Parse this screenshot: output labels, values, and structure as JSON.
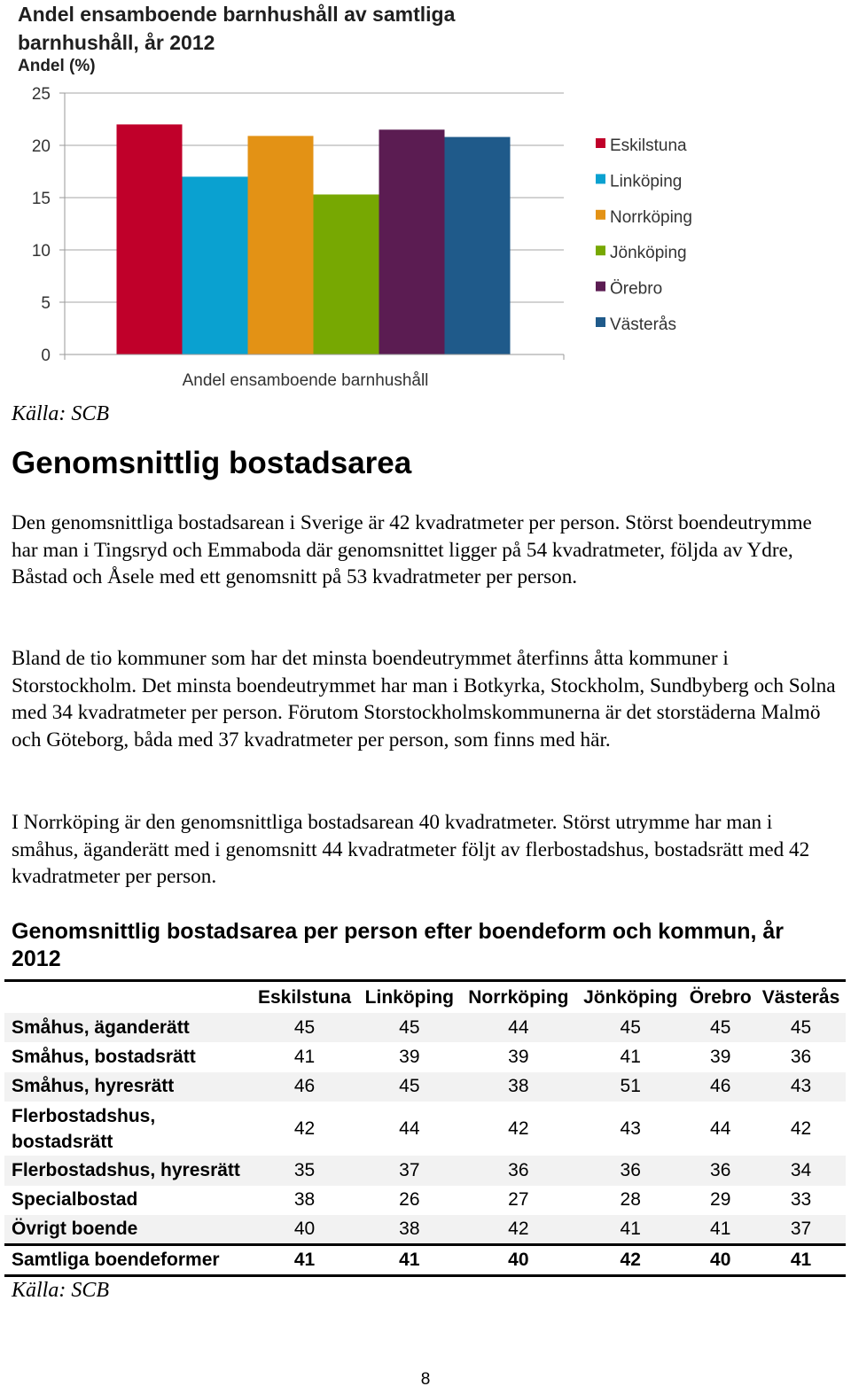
{
  "chart": {
    "title": "Andel ensamboende barnhushåll av samtliga barnhushåll, år 2012",
    "ylabel": "Andel (%)"
  },
  "chart_data": {
    "type": "bar",
    "title": "Andel ensamboende barnhushåll av samtliga barnhushåll, år 2012",
    "ylabel": "Andel (%)",
    "xlabel": "",
    "categories": [
      "Andel ensamboende barnhushåll"
    ],
    "yticks": [
      "0",
      "5",
      "10",
      "15",
      "20",
      "25"
    ],
    "ylim": [
      0,
      25
    ],
    "grid": true,
    "legend_position": "right",
    "series": [
      {
        "name": "Eskilstuna",
        "values": [
          22.0
        ],
        "color": "#c0002a"
      },
      {
        "name": "Linköping",
        "values": [
          17.0
        ],
        "color": "#0aa1d0"
      },
      {
        "name": "Norrköping",
        "values": [
          20.9
        ],
        "color": "#e39215"
      },
      {
        "name": "Jönköping",
        "values": [
          15.3
        ],
        "color": "#77a802"
      },
      {
        "name": "Örebro",
        "values": [
          21.5
        ],
        "color": "#5b1c52"
      },
      {
        "name": "Västerås",
        "values": [
          20.8
        ],
        "color": "#1f5a8a"
      }
    ]
  },
  "chart_source": "Källa: SCB",
  "section": {
    "heading": "Genomsnittlig bostadsarea",
    "paragraphs": [
      "Den genomsnittliga bostadsarean i Sverige är 42 kvadratmeter per person. Störst boendeutrymme har man i Tingsryd och Emmaboda där genomsnittet ligger på 54 kvadratmeter, följda av Ydre, Båstad och Åsele med ett genomsnitt på 53 kvadratmeter per person.",
      "Bland de tio kommuner som har det minsta boendeutrymmet återfinns åtta kommuner i Storstockholm. Det minsta boendeutrymmet har man i Botkyrka, Stockholm, Sundbyberg och Solna med 34 kvadratmeter per person. Förutom Storstockholmskommunerna är det storstäderna Malmö och Göteborg, båda med 37 kvadratmeter per person, som finns med här.",
      "I Norrköping är den genomsnittliga bostadsarean 40 kvadratmeter. Störst utrymme har man i småhus, äganderätt med i genomsnitt 44 kvadratmeter följt av flerbostadshus, bostadsrätt med 42 kvadratmeter per person."
    ]
  },
  "table": {
    "heading": "Genomsnittlig bostadsarea per person efter boendeform och kommun, år 2012",
    "columns": [
      "",
      "Eskilstuna",
      "Linköping",
      "Norrköping",
      "Jönköping",
      "Örebro",
      "Västerås"
    ],
    "rows": [
      {
        "label": "Småhus, äganderätt",
        "values": [
          "45",
          "45",
          "44",
          "45",
          "45",
          "45"
        ]
      },
      {
        "label": "Småhus, bostadsrätt",
        "values": [
          "41",
          "39",
          "39",
          "41",
          "39",
          "36"
        ]
      },
      {
        "label": "Småhus, hyresrätt",
        "values": [
          "46",
          "45",
          "38",
          "51",
          "46",
          "43"
        ]
      },
      {
        "label": "Flerbostadshus, bostadsrätt",
        "values": [
          "42",
          "44",
          "42",
          "43",
          "44",
          "42"
        ]
      },
      {
        "label": "Flerbostadshus, hyresrätt",
        "values": [
          "35",
          "37",
          "36",
          "36",
          "36",
          "34"
        ]
      },
      {
        "label": "Specialbostad",
        "values": [
          "38",
          "26",
          "27",
          "28",
          "29",
          "33"
        ]
      },
      {
        "label": "Övrigt boende",
        "values": [
          "40",
          "38",
          "42",
          "41",
          "41",
          "37"
        ]
      }
    ],
    "total": {
      "label": "Samtliga boendeformer",
      "values": [
        "41",
        "41",
        "40",
        "42",
        "40",
        "41"
      ]
    }
  },
  "table_source": "Källa: SCB",
  "page_number": "8"
}
